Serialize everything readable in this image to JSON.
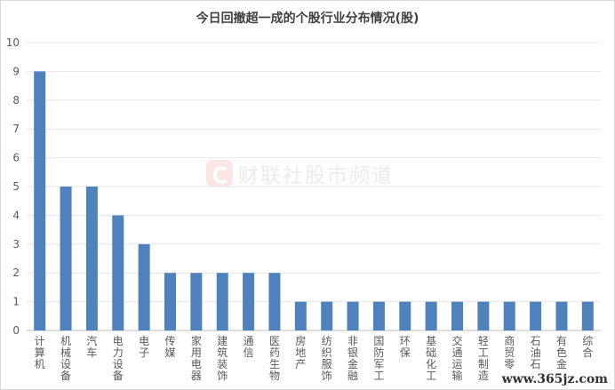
{
  "chart_data": {
    "type": "bar",
    "title": "今日回撤超一成的个股行业分布情况(股)",
    "categories": [
      "计算机",
      "机械设备",
      "汽车",
      "电力设备",
      "电子",
      "传媒",
      "家用电器",
      "建筑装饰",
      "通信",
      "医药生物",
      "房地产",
      "纺织服饰",
      "非银金融",
      "国防军工",
      "环保",
      "基础化工",
      "交通运输",
      "轻工制造",
      "商贸零售",
      "石油石化",
      "有色金属",
      "综合"
    ],
    "categories_visible": [
      "计算机",
      "机械设备",
      "汽车",
      "电力设备",
      "电子",
      "传媒",
      "家用电器",
      "建筑装饰",
      "通信",
      "医药生物",
      "房地产",
      "纺织服饰",
      "非银金融",
      "国防军工",
      "环保",
      "基础化工",
      "交通运输",
      "轻工制造",
      "商贸零",
      "石油石",
      "有色金",
      "综合"
    ],
    "values": [
      9,
      5,
      5,
      4,
      3,
      2,
      2,
      2,
      2,
      2,
      1,
      1,
      1,
      1,
      1,
      1,
      1,
      1,
      1,
      1,
      1,
      1
    ],
    "ylim": [
      0,
      10
    ],
    "yticks": [
      0,
      1,
      2,
      3,
      4,
      5,
      6,
      7,
      8,
      9,
      10
    ],
    "xlabel": "",
    "ylabel": "",
    "grid": true,
    "bar_color": "#4f81bd"
  },
  "watermark": {
    "text": "财联社股市频道",
    "site": "www.365jz.com"
  }
}
